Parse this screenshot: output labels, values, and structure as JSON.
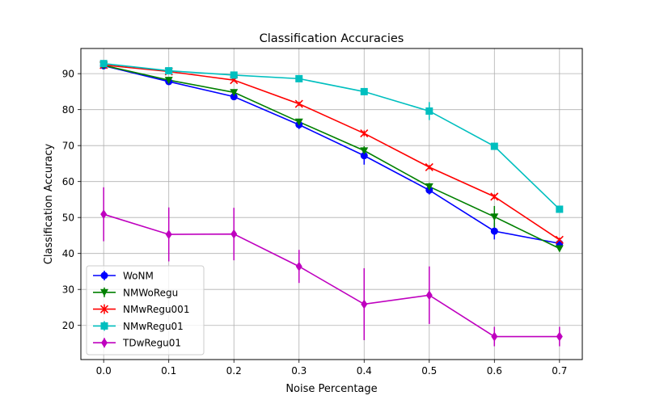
{
  "chart_data": {
    "type": "line",
    "title": "Classification Accuracies",
    "xlabel": "Noise Percentage",
    "ylabel": "Classification Accuracy",
    "xlim": [
      -0.035,
      0.735
    ],
    "ylim": [
      10.5,
      97
    ],
    "grid": true,
    "legend_position": "lower-left",
    "xticks": [
      "0.0",
      "0.1",
      "0.2",
      "0.3",
      "0.4",
      "0.5",
      "0.6",
      "0.7"
    ],
    "yticks": [
      "20",
      "30",
      "40",
      "50",
      "60",
      "70",
      "80",
      "90"
    ],
    "x": [
      0.0,
      0.1,
      0.2,
      0.3,
      0.4,
      0.5,
      0.6,
      0.7
    ],
    "series": [
      {
        "name": "WoNM",
        "color": "#0000ff",
        "marker": "circle",
        "values": [
          92.2,
          87.8,
          83.6,
          75.8,
          67.2,
          57.6,
          46.2,
          42.8
        ],
        "errors": [
          0.5,
          0.6,
          0.6,
          1.2,
          2.5,
          1.2,
          2.3,
          1.0
        ]
      },
      {
        "name": "NMWoRegu",
        "color": "#008000",
        "marker": "triangle-down",
        "values": [
          92.3,
          88.2,
          84.8,
          76.6,
          68.6,
          58.6,
          50.2,
          41.4
        ],
        "errors": [
          0.4,
          0.5,
          0.6,
          0.8,
          1.2,
          1.0,
          3.0,
          0.8
        ]
      },
      {
        "name": "NMwRegu001",
        "color": "#ff0000",
        "marker": "x",
        "values": [
          92.4,
          90.6,
          88.2,
          81.6,
          73.4,
          64.0,
          55.8,
          43.8
        ],
        "errors": [
          0.3,
          0.4,
          0.4,
          0.6,
          0.8,
          0.6,
          0.7,
          0.6
        ]
      },
      {
        "name": "NMwRegu01",
        "color": "#00bfbf",
        "marker": "square",
        "values": [
          92.8,
          90.8,
          89.6,
          88.6,
          85.0,
          79.6,
          69.8,
          52.3
        ],
        "errors": [
          0.3,
          0.4,
          0.3,
          0.4,
          0.5,
          2.5,
          0.6,
          0.5
        ]
      },
      {
        "name": "TDwRegu01",
        "color": "#bf00bf",
        "marker": "diamond",
        "values": [
          50.9,
          45.3,
          45.4,
          36.4,
          25.9,
          28.4,
          16.9,
          16.9
        ],
        "errors": [
          7.5,
          7.5,
          7.3,
          4.6,
          10.0,
          8.0,
          2.7,
          2.7
        ]
      }
    ]
  }
}
